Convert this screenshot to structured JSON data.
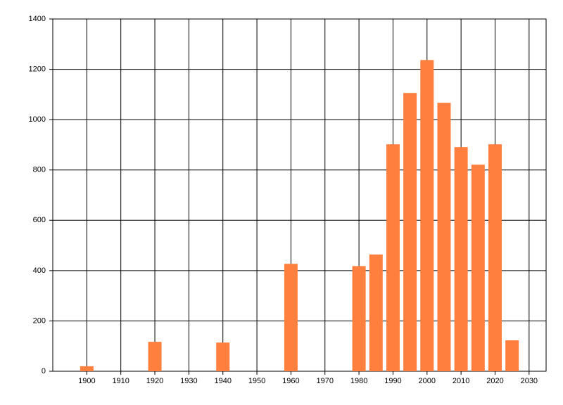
{
  "chart_data": {
    "type": "bar",
    "x": [
      1900,
      1920,
      1940,
      1960,
      1980,
      1985,
      1990,
      1995,
      2000,
      2005,
      2010,
      2015,
      2020,
      2025
    ],
    "values": [
      20,
      117,
      114,
      427,
      418,
      464,
      902,
      1106,
      1237,
      1067,
      891,
      821,
      902,
      123
    ],
    "color": "#ff7f3f",
    "xlim": [
      1890,
      2035
    ],
    "xticks": [
      1900,
      1910,
      1920,
      1930,
      1940,
      1950,
      1960,
      1970,
      1980,
      1990,
      2000,
      2010,
      2020,
      2030
    ],
    "ylim": [
      0,
      1400
    ],
    "yticks": [
      0,
      200,
      400,
      600,
      800,
      1000,
      1200,
      1400
    ],
    "grid": true
  }
}
